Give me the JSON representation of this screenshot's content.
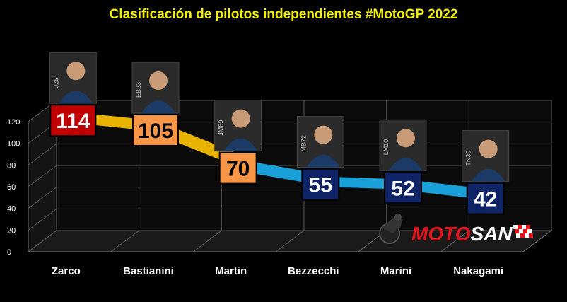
{
  "chart_data": {
    "type": "line",
    "title": "Clasificación de pilotos independientes #MotoGP 2022",
    "categories": [
      "Zarco",
      "Bastianini",
      "Martin",
      "Bezzecchi",
      "Marini",
      "Nakagami"
    ],
    "values": [
      114,
      105,
      70,
      55,
      52,
      42
    ],
    "ylim": [
      0,
      120
    ],
    "yticks": [
      0,
      20,
      40,
      60,
      80,
      100,
      120
    ],
    "rider_numbers": [
      "JZ5",
      "EB23",
      "JM89",
      "MB72",
      "LM10",
      "TN30"
    ],
    "label_colors": [
      "#c00000",
      "#f79646",
      "#f79646",
      "#0f2466",
      "#0f2466",
      "#0f2466"
    ],
    "label_text_colors": [
      "#ffffff",
      "#000000",
      "#000000",
      "#ffffff",
      "#ffffff",
      "#ffffff"
    ],
    "segment_colors": [
      "#e8b400",
      "#e8b400",
      "#1aa0d8",
      "#1aa0d8",
      "#1aa0d8"
    ],
    "grid": true
  },
  "brand": {
    "text_red": "MOTO",
    "text_white": "SAN",
    "color_red": "#e2141c",
    "icon": "motorcycle-rider-icon"
  }
}
